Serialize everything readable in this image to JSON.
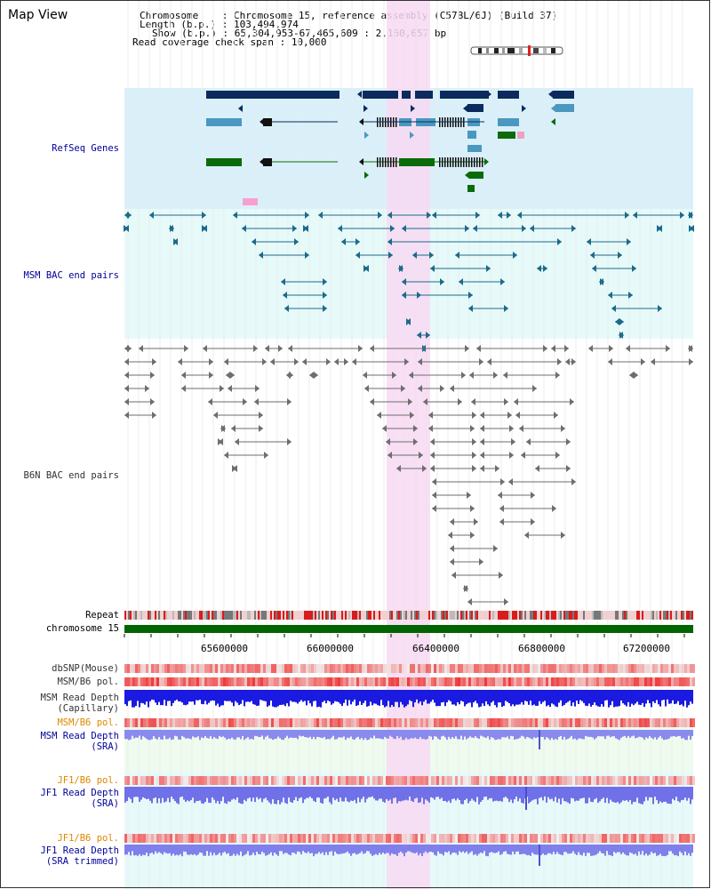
{
  "header": {
    "title": "Map View",
    "chromosome_label": "Chromosome    : ",
    "chromosome_value": "Chromosome 15, reference assembly (C57BL/6J) (Build 37)",
    "length_label": "Length (b.p.) : ",
    "length_value": "103,494,974",
    "show_label": "Show (b.p.) : ",
    "show_value": "65,304,953-67,465,609 : 2,160,657 bp",
    "coverage_label": "Read coverage check span : ",
    "coverage_value": "10,000"
  },
  "tracks": {
    "refseq": "RefSeq Genes",
    "msm_bac": "MSM BAC end pairs",
    "b6n_bac": "B6N BAC end pairs",
    "repeat": "Repeat",
    "chromosome": "chromosome 15",
    "dbsnp": "dbSNP(Mouse)",
    "msm_b6_pol": "MSM/B6 pol.",
    "msm_depth_cap": "MSM Read Depth\n(Capillary)",
    "msm_b6_pol_2": "MSM/B6 pol.",
    "msm_depth_sra": "MSM Read Depth\n(SRA)",
    "jf1_b6_pol": "JF1/B6 pol.",
    "jf1_depth_sra": "JF1 Read Depth\n(SRA)",
    "jf1_b6_pol_2": "JF1/B6 pol.",
    "jf1_depth_trim": "JF1 Read Depth\n(SRA trimmed)"
  },
  "axis": {
    "ticks": [
      "65600000",
      "66000000",
      "66400000",
      "66800000",
      "67200000"
    ]
  },
  "colors": {
    "refseq_bg": "#d9f0fa",
    "msm_bg": "#e6fafa",
    "highlight": "#f7d9f2",
    "navy": "#0a2b5c",
    "teal": "#4a98c0",
    "green": "#0b6b0b",
    "msm_line": "#1d6a8a",
    "b6n_line": "#6e6e6e",
    "chrom_bar": "#006400",
    "label_navy": "#000099",
    "label_orange": "#dd8800",
    "label_gray": "#333333"
  }
}
